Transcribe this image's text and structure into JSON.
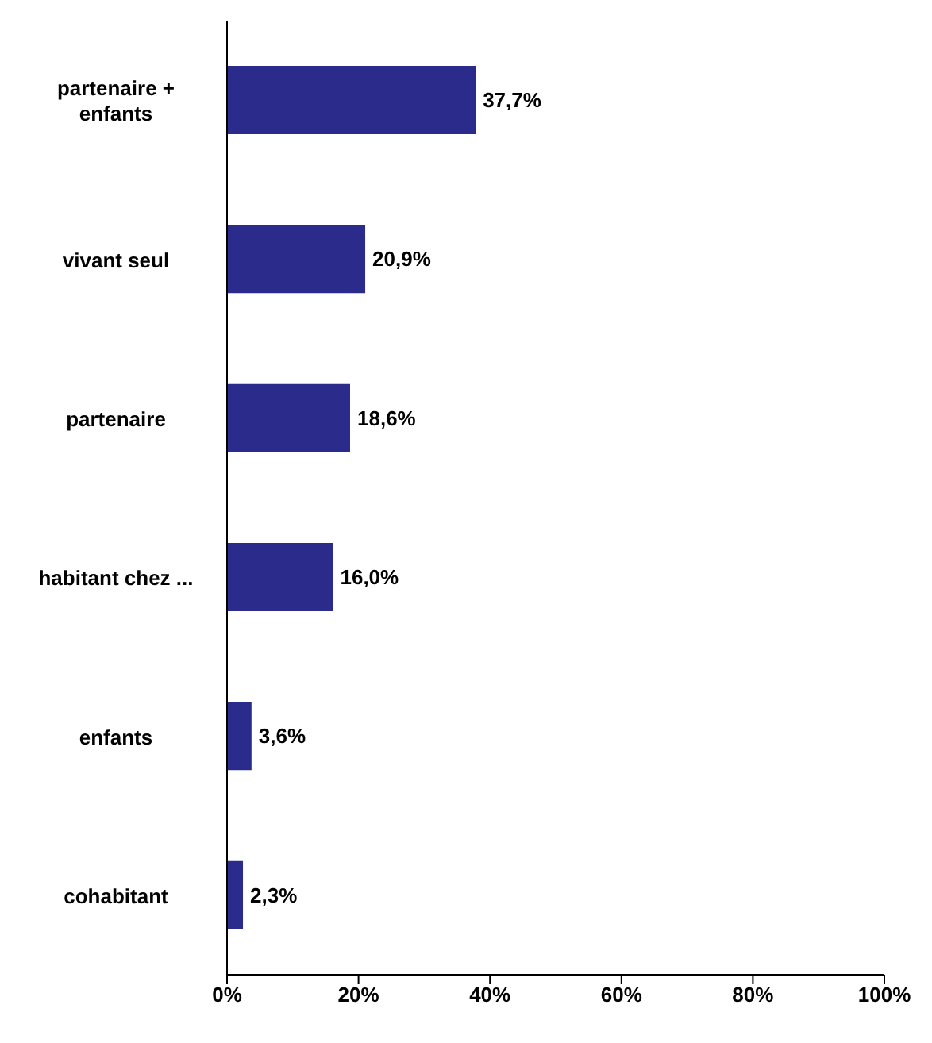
{
  "chart_data": {
    "type": "bar",
    "orientation": "horizontal",
    "categories": [
      "partenaire + enfants",
      "vivant seul",
      "partenaire",
      "habitant chez ...",
      "enfants",
      "cohabitant"
    ],
    "values": [
      37.7,
      20.9,
      18.6,
      16.0,
      3.6,
      2.3
    ],
    "value_labels": [
      "37,7%",
      "20,9%",
      "18,6%",
      "16,0%",
      "3,6%",
      "2,3%"
    ],
    "color": "#2b2b8c",
    "xlim": [
      0,
      100
    ],
    "xticks": [
      {
        "value": 0,
        "label": "0%"
      },
      {
        "value": 20,
        "label": "20%"
      },
      {
        "value": 40,
        "label": "40%"
      },
      {
        "value": 60,
        "label": "60%"
      },
      {
        "value": 80,
        "label": "80%"
      },
      {
        "value": 100,
        "label": "100%"
      }
    ],
    "grid": false,
    "legend": false
  }
}
